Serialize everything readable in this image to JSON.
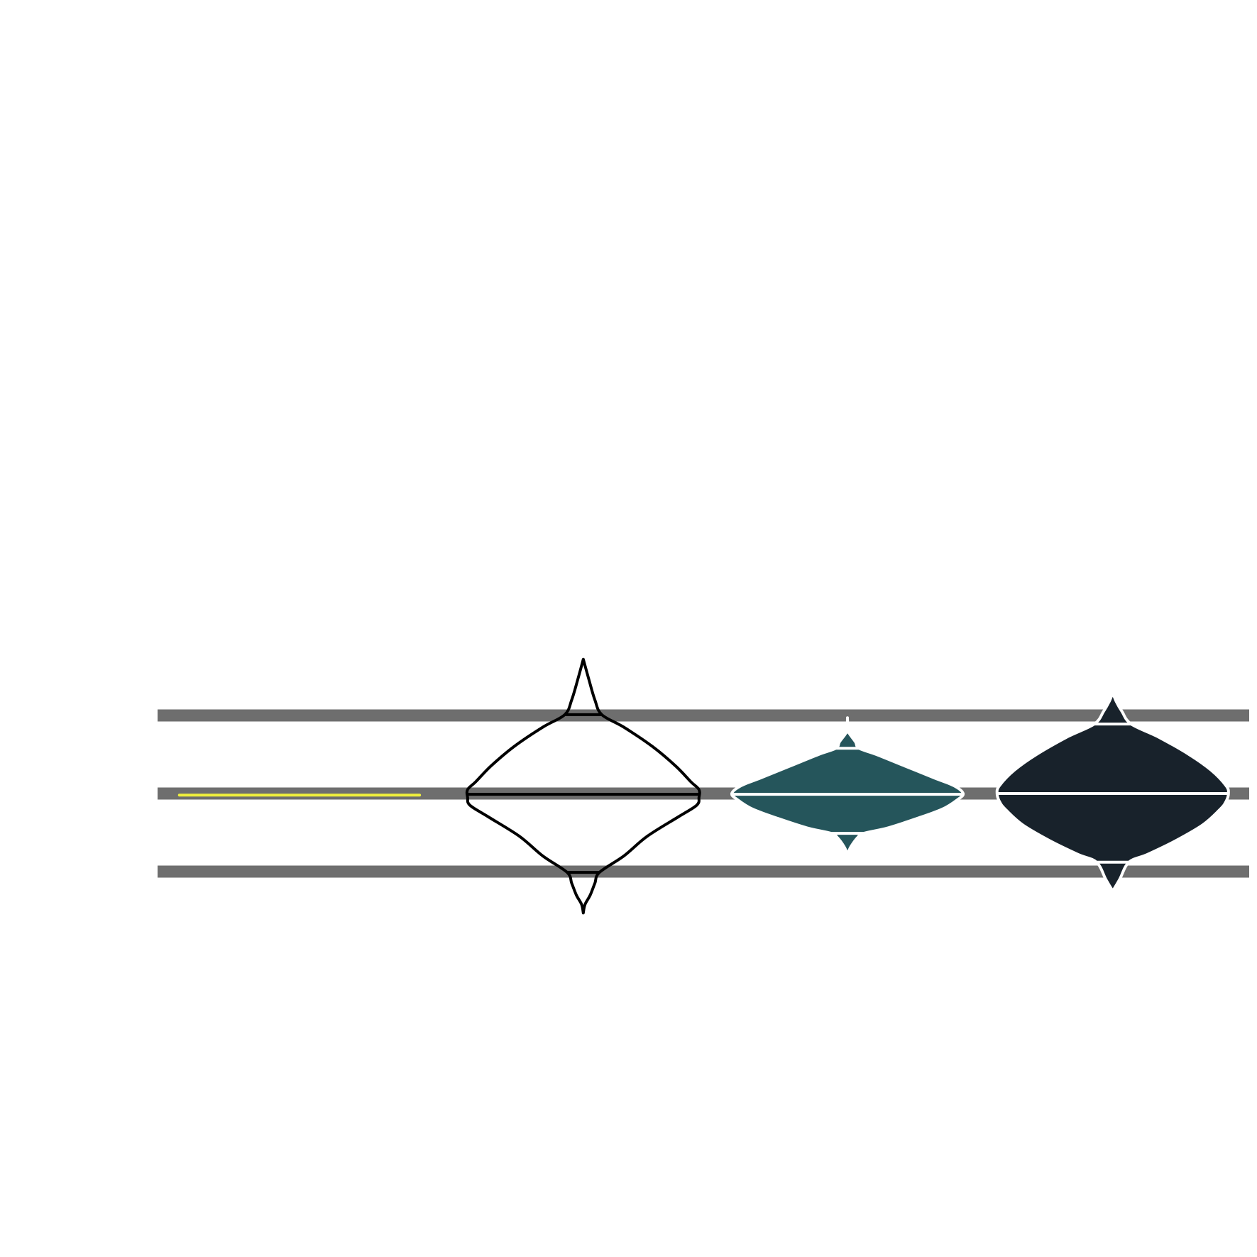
{
  "chart_data": {
    "type": "violin",
    "title": "",
    "xlabel": "",
    "ylabel": "",
    "ylim": [
      -1.2,
      1.2
    ],
    "gridlines_y": [
      -1,
      0,
      1
    ],
    "grid": true,
    "legend": "none",
    "colors": {
      "background": "#ffffff",
      "grid": "#6e6e6e",
      "highlight": "#f0f03c"
    },
    "highlight_segment": {
      "y": -0.02,
      "x_range": [
        0.02,
        0.24
      ],
      "color": "#f0f03c"
    },
    "series": [
      {
        "position": 0.39,
        "fill": "none",
        "stroke": "#000000",
        "min": -1.53,
        "q1": -1.01,
        "median": -0.01,
        "q3": 1.01,
        "max": 1.72,
        "profile": [
          [
            -1.53,
            0.0
          ],
          [
            -1.42,
            0.015
          ],
          [
            -1.3,
            0.06
          ],
          [
            -1.15,
            0.1
          ],
          [
            -1.01,
            0.14
          ],
          [
            -0.8,
            0.35
          ],
          [
            -0.55,
            0.55
          ],
          [
            -0.3,
            0.82
          ],
          [
            -0.15,
            0.98
          ],
          [
            -0.05,
            1.0
          ],
          [
            0.05,
            1.0
          ],
          [
            0.15,
            0.93
          ],
          [
            0.35,
            0.8
          ],
          [
            0.6,
            0.6
          ],
          [
            0.85,
            0.35
          ],
          [
            1.01,
            0.16
          ],
          [
            1.2,
            0.1
          ],
          [
            1.45,
            0.05
          ],
          [
            1.72,
            0.0
          ]
        ]
      },
      {
        "position": 0.632,
        "fill": "#25555b",
        "stroke": "#ffffff",
        "min": -0.78,
        "q1": -0.51,
        "median": -0.01,
        "q3": 0.58,
        "max": 0.97,
        "profile": [
          [
            -0.78,
            0.0
          ],
          [
            -0.68,
            0.03
          ],
          [
            -0.56,
            0.09
          ],
          [
            -0.51,
            0.14
          ],
          [
            -0.44,
            0.35
          ],
          [
            -0.32,
            0.6
          ],
          [
            -0.2,
            0.82
          ],
          [
            -0.08,
            0.95
          ],
          [
            0.0,
            1.0
          ],
          [
            0.1,
            0.92
          ],
          [
            0.2,
            0.75
          ],
          [
            0.35,
            0.5
          ],
          [
            0.5,
            0.25
          ],
          [
            0.58,
            0.1
          ],
          [
            0.66,
            0.07
          ],
          [
            0.76,
            0.02
          ],
          [
            0.82,
            0.0
          ],
          [
            0.97,
            0.0
          ]
        ]
      },
      {
        "position": 0.875,
        "fill": "#18222b",
        "stroke": "#ffffff",
        "min": -1.25,
        "q1": -0.88,
        "median": 0.0,
        "q3": 0.89,
        "max": 1.29,
        "profile": [
          [
            -1.25,
            0.0
          ],
          [
            -1.1,
            0.06
          ],
          [
            -0.88,
            0.14
          ],
          [
            -0.78,
            0.3
          ],
          [
            -0.6,
            0.55
          ],
          [
            -0.4,
            0.78
          ],
          [
            -0.2,
            0.93
          ],
          [
            -0.1,
            0.98
          ],
          [
            0.0,
            1.0
          ],
          [
            0.1,
            0.98
          ],
          [
            0.3,
            0.85
          ],
          [
            0.5,
            0.66
          ],
          [
            0.72,
            0.4
          ],
          [
            0.89,
            0.16
          ],
          [
            1.05,
            0.08
          ],
          [
            1.18,
            0.03
          ],
          [
            1.29,
            0.0
          ]
        ]
      }
    ]
  }
}
